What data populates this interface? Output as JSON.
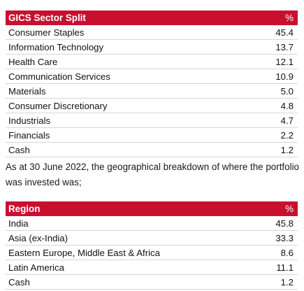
{
  "sector_table": {
    "header": {
      "label": "GICS Sector Split",
      "unit": "%"
    },
    "rows": [
      {
        "label": "Consumer Staples",
        "value": "45.4"
      },
      {
        "label": "Information Technology",
        "value": "13.7"
      },
      {
        "label": "Health Care",
        "value": "12.1"
      },
      {
        "label": "Communication Services",
        "value": "10.9"
      },
      {
        "label": "Materials",
        "value": "5.0"
      },
      {
        "label": "Consumer Discretionary",
        "value": "4.8"
      },
      {
        "label": "Industrials",
        "value": "4.7"
      },
      {
        "label": "Financials",
        "value": "2.2"
      },
      {
        "label": "Cash",
        "value": "1.2"
      }
    ]
  },
  "paragraph": "As at 30 June 2022, the geographical breakdown of where the portfolio was invested was;",
  "region_table": {
    "header": {
      "label": "Region",
      "unit": "%"
    },
    "rows": [
      {
        "label": "India",
        "value": "45.8"
      },
      {
        "label": "Asia (ex-India)",
        "value": "33.3"
      },
      {
        "label": "Eastern Europe, Middle East & Africa",
        "value": "8.6"
      },
      {
        "label": "Latin America",
        "value": "11.1"
      },
      {
        "label": "Cash",
        "value": "1.2"
      }
    ]
  },
  "colors": {
    "header_bg": "#c8102e",
    "header_text": "#ffffff",
    "row_rule": "#d6d6d6"
  }
}
